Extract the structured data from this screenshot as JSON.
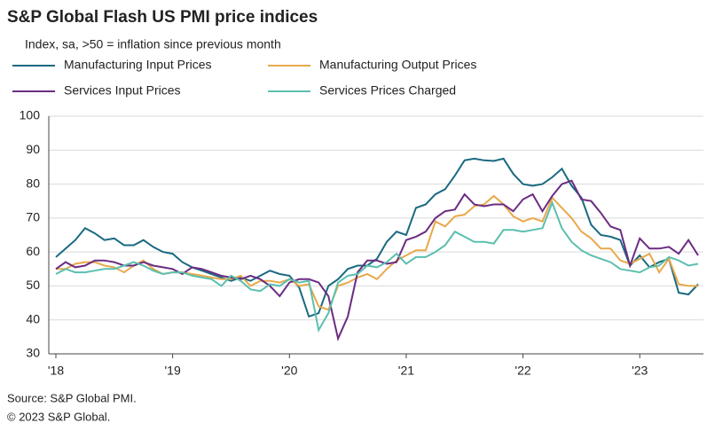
{
  "chart_data": {
    "type": "line",
    "title": "S&P Global Flash US PMI price indices",
    "subtitle": "Index, sa, >50 = inflation since previous month",
    "source": "Source: S&P Global PMI.",
    "copyright": "© 2023 S&P Global.",
    "categories": [
      "'18",
      null,
      null,
      null,
      null,
      null,
      null,
      null,
      null,
      null,
      null,
      null,
      "'19",
      null,
      null,
      null,
      null,
      null,
      null,
      null,
      null,
      null,
      null,
      null,
      "'20",
      null,
      null,
      null,
      null,
      null,
      null,
      null,
      null,
      null,
      null,
      null,
      "'21",
      null,
      null,
      null,
      null,
      null,
      null,
      null,
      null,
      null,
      null,
      null,
      "'22",
      null,
      null,
      null,
      null,
      null,
      null,
      null,
      null,
      null,
      null,
      null,
      "'23",
      null,
      null,
      null,
      null,
      null,
      null
    ],
    "series": [
      {
        "name": "Manufacturing Input Prices",
        "color": "#1a6a80",
        "values": [
          58.5,
          61,
          63.5,
          67,
          65.5,
          63.5,
          64,
          62,
          62,
          63.5,
          61.5,
          60,
          59.5,
          57,
          55.5,
          54.5,
          53.5,
          52.5,
          51.5,
          52.5,
          51.5,
          53,
          54.5,
          53.5,
          53,
          49.5,
          41,
          42,
          50,
          52,
          55,
          56,
          56,
          58,
          63,
          66,
          65,
          73,
          74,
          77,
          78.5,
          82.5,
          87,
          87.5,
          87,
          86.8,
          87.5,
          83,
          80,
          79.5,
          80,
          82,
          84.5,
          79.5,
          76,
          68,
          65,
          64.5,
          63.5,
          56,
          59,
          55.5,
          57,
          58,
          48,
          47.5,
          50.5
        ]
      },
      {
        "name": "Manufacturing Output Prices",
        "color": "#e8a94a",
        "values": [
          55,
          55,
          56.5,
          57,
          57,
          56,
          55.5,
          54,
          56,
          57.5,
          55,
          53.5,
          54,
          54,
          53.5,
          53,
          52.5,
          52,
          52,
          53,
          50,
          51.5,
          51.5,
          51,
          52,
          50,
          50.5,
          44,
          43,
          50,
          51,
          52.5,
          53.5,
          52,
          55,
          57.5,
          59,
          60.5,
          60.5,
          69,
          67.5,
          70.5,
          71,
          73.5,
          74,
          76.5,
          74,
          70.5,
          69,
          70,
          69,
          76,
          73,
          70,
          66,
          64,
          61,
          61,
          57.5,
          56.5,
          58,
          59.5,
          54,
          58,
          50.5,
          50,
          50
        ]
      },
      {
        "name": "Services Input Prices",
        "color": "#6b2c82",
        "values": [
          55,
          57,
          55.5,
          56,
          57.5,
          57.5,
          57,
          56,
          56,
          57,
          56,
          55.5,
          55,
          53.5,
          55.5,
          55,
          54,
          53,
          52.5,
          52,
          53,
          52,
          50,
          47,
          51,
          52,
          52,
          51,
          47,
          34.5,
          41,
          54,
          57.5,
          57.5,
          56.5,
          57,
          63.5,
          64.5,
          66,
          70,
          72,
          72.5,
          77,
          74,
          73.5,
          74,
          74,
          72,
          75.5,
          77,
          72,
          76.5,
          80,
          81,
          75.5,
          75,
          71.5,
          67.5,
          66.5,
          56,
          64,
          61,
          61,
          61.5,
          59.5,
          63.5,
          59
        ]
      },
      {
        "name": "Services Prices Charged",
        "color": "#5bbfae",
        "values": [
          53.5,
          55,
          54,
          54,
          54.5,
          55,
          55,
          56,
          57,
          56,
          54.5,
          53.5,
          54,
          54,
          53,
          52.5,
          52,
          50,
          53,
          51.5,
          49,
          48.5,
          50.5,
          50,
          52,
          51,
          51.5,
          37,
          42,
          51,
          53,
          53.5,
          56,
          55.5,
          57,
          59.5,
          56.5,
          58.5,
          58.5,
          60,
          62,
          66,
          64.5,
          63,
          63,
          62.5,
          66.5,
          66.5,
          66,
          66.5,
          67,
          74.5,
          67,
          63,
          60.5,
          59,
          58,
          57,
          55,
          54.5,
          54,
          55.5,
          56,
          58.5,
          57.5,
          56,
          56.5
        ]
      }
    ],
    "ylim": [
      30,
      100
    ],
    "yticks": [
      30,
      40,
      50,
      60,
      70,
      80,
      90,
      100
    ],
    "grid": true
  }
}
